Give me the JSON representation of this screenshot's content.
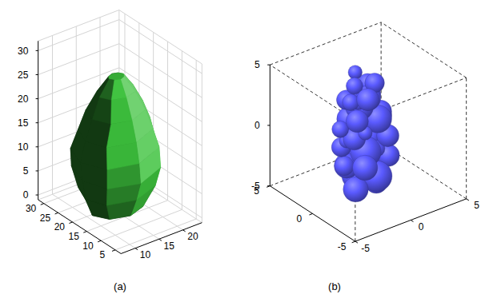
{
  "chart_data": [
    {
      "type": "surface",
      "title": "(a)",
      "color": "#3cbe3c",
      "grid": true,
      "xlim": [
        7,
        24
      ],
      "xticks": [
        10,
        15,
        20
      ],
      "ylim": [
        3,
        32
      ],
      "yticks": [
        5,
        10,
        15,
        20,
        25,
        30
      ],
      "zlim": [
        -1,
        32
      ],
      "zticks": [
        0,
        5,
        10,
        15,
        20,
        25,
        30
      ],
      "slices": [
        {
          "z": 0,
          "x": [
            20,
            18.5,
            15,
            11.5,
            10,
            11.5,
            15,
            18.5
          ],
          "y": [
            18,
            21.5,
            23,
            21.5,
            18,
            14.5,
            13,
            14.5
          ]
        },
        {
          "z": 4,
          "x": [
            22,
            20,
            15,
            10,
            8.5,
            10,
            15,
            20.5
          ],
          "y": [
            18,
            23,
            25,
            23,
            18,
            13,
            11,
            13.5
          ]
        },
        {
          "z": 8,
          "x": [
            23,
            21,
            15,
            9.5,
            8,
            9.5,
            15,
            21
          ],
          "y": [
            18,
            24,
            27,
            24.5,
            18,
            12,
            9.5,
            12.5
          ]
        },
        {
          "z": 12,
          "x": [
            23,
            21,
            15,
            9,
            7.5,
            9.5,
            15,
            21
          ],
          "y": [
            18,
            24.5,
            27,
            24,
            18,
            12,
            10,
            13
          ]
        },
        {
          "z": 16,
          "x": [
            22,
            20.5,
            15,
            10,
            8.5,
            10,
            15,
            20
          ],
          "y": [
            18,
            23.5,
            26,
            23,
            18,
            13,
            11,
            13.5
          ]
        },
        {
          "z": 20,
          "x": [
            20.5,
            19,
            15,
            11,
            10,
            11.5,
            15,
            19
          ],
          "y": [
            18,
            22,
            24,
            22,
            18,
            14,
            12.5,
            14.5
          ]
        },
        {
          "z": 24,
          "x": [
            18.5,
            17.5,
            15,
            12.5,
            11.5,
            12.5,
            15,
            17.5
          ],
          "y": [
            18,
            20.5,
            21.5,
            20.5,
            18,
            15.5,
            14.5,
            15.5
          ]
        },
        {
          "z": 27,
          "x": [
            16.5,
            16,
            15,
            14,
            13.5,
            14,
            15,
            16
          ],
          "y": [
            18,
            19,
            19.5,
            19,
            18,
            17,
            16.5,
            17
          ]
        }
      ]
    },
    {
      "type": "scatter3d",
      "title": "(b)",
      "color": "#5a5aff",
      "grid": false,
      "xlim": [
        -5,
        5
      ],
      "xticks": [
        -5,
        0,
        5
      ],
      "ylim": [
        -5,
        5
      ],
      "yticks": [
        -5,
        0,
        5
      ],
      "zlim": [
        -5,
        5
      ],
      "zticks": [
        -5,
        0,
        5
      ],
      "x": [
        -1.5,
        -0.5,
        0.5,
        -1,
        0,
        1,
        -2,
        -1.2,
        0.2,
        1.2,
        -1.8,
        -0.6,
        0.6,
        -1.4,
        -0.2,
        1,
        -2.2,
        -1,
        0.4,
        1.4,
        -1.6,
        -0.4,
        0.8,
        -1.2,
        0,
        1,
        -1.8,
        -0.8,
        0.4,
        -1,
        0.2,
        -0.4,
        -1.5,
        0.6,
        -0.8,
        0,
        -1.2,
        0.5,
        -0.3,
        1.2
      ],
      "y": [
        -0.5,
        0.8,
        -0.3,
        1.2,
        -1,
        0.5,
        0.2,
        -1.2,
        1,
        -0.8,
        0.8,
        -0.5,
        0.6,
        -0.2,
        1.2,
        -1,
        0.4,
        0.9,
        -0.6,
        0.2,
        -0.8,
        0.5,
        -0.4,
        1,
        0,
        0.8,
        -0.3,
        -1,
        0.6,
        0.3,
        -0.5,
        1,
        0.6,
        -0.2,
        -0.7,
        0.4,
        -0.4,
        0.9,
        -0.1,
        0.1
      ],
      "z": [
        -4,
        -3.8,
        -4.2,
        -3,
        -3.2,
        -3,
        -2.2,
        -2,
        -2.4,
        -2,
        -1,
        -1.2,
        -0.8,
        0,
        0.2,
        -0.2,
        0.8,
        1,
        1.2,
        0.8,
        1.8,
        2,
        1.6,
        2.6,
        2.8,
        2.4,
        3.2,
        3.4,
        3.6,
        4,
        4.2,
        4.6,
        -0.5,
        -1.5,
        0.5,
        -2.8,
        3,
        1.5,
        -3.5,
        -1
      ],
      "sizes": [
        0.9,
        1,
        0.8,
        0.9,
        1.1,
        0.8,
        0.7,
        0.9,
        1,
        0.8,
        0.7,
        1.1,
        0.9,
        0.8,
        1,
        0.8,
        0.6,
        0.9,
        1,
        0.7,
        0.8,
        1,
        0.8,
        0.7,
        0.9,
        0.6,
        0.6,
        0.8,
        0.7,
        0.6,
        0.7,
        0.5,
        0.5,
        0.6,
        0.5,
        0.6,
        0.5,
        0.5,
        0.4,
        0.5
      ]
    }
  ]
}
